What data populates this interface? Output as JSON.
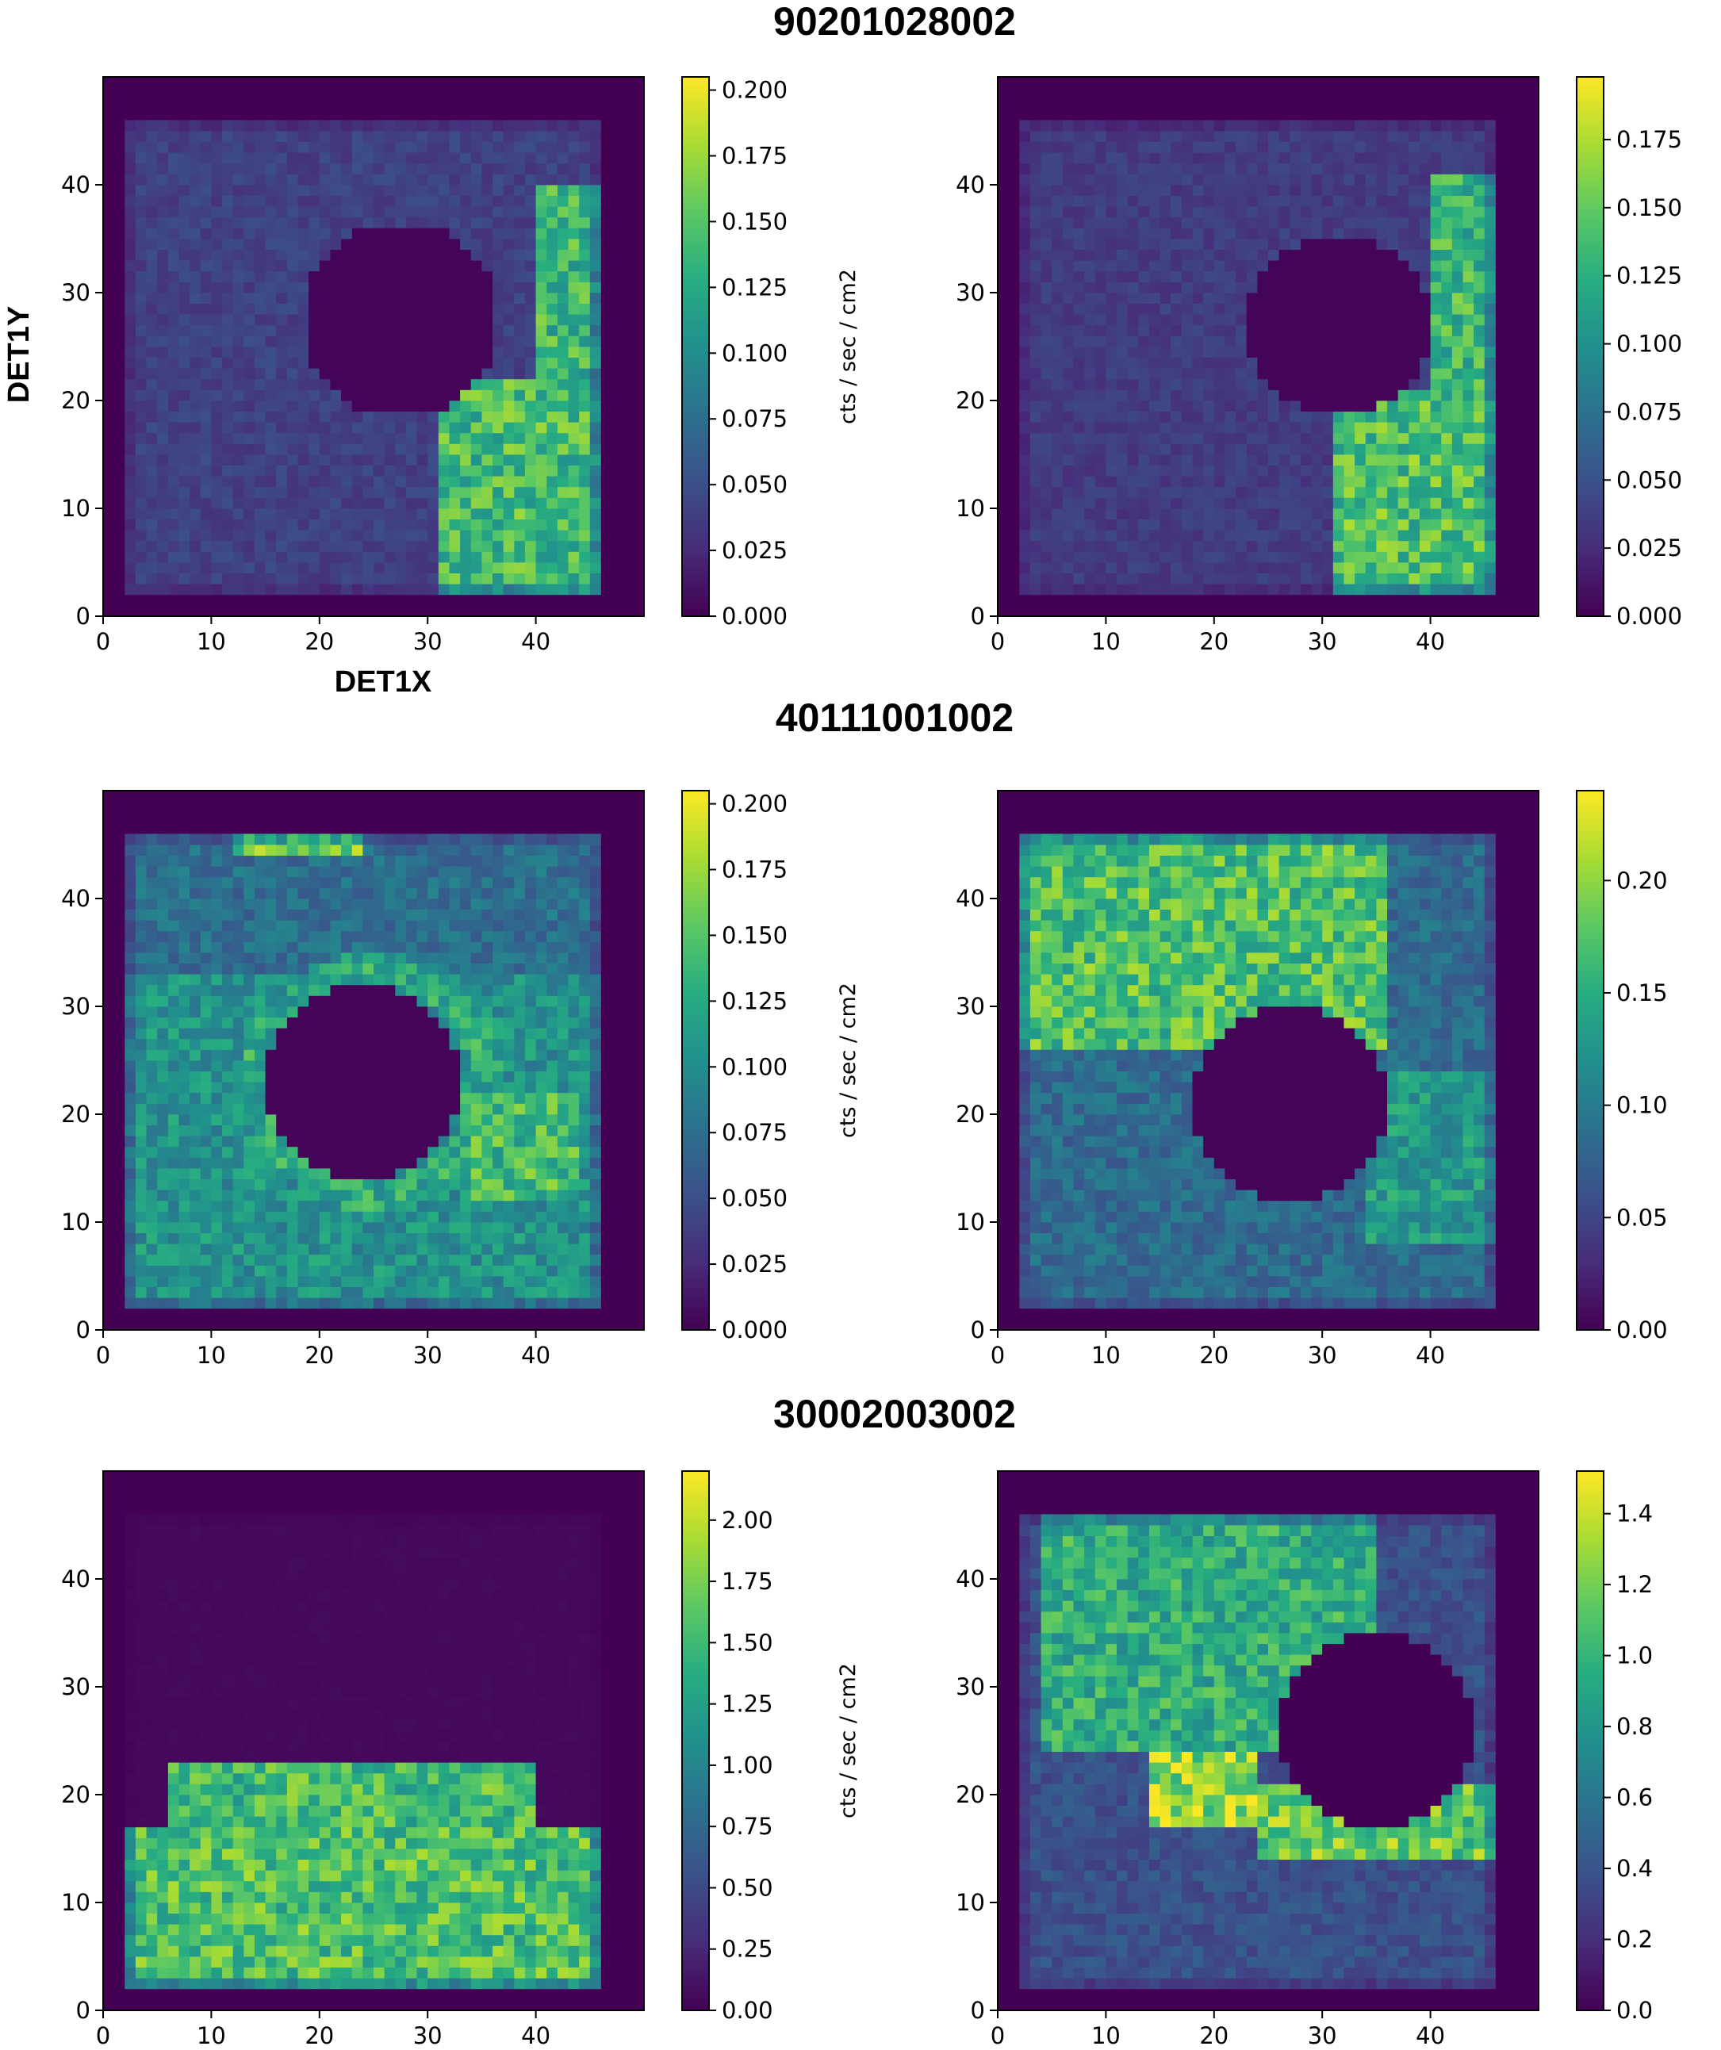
{
  "figure": {
    "group_titles": [
      "90201028002",
      "40111001002",
      "30002003002"
    ],
    "xlabel": "DET1X",
    "ylabel": "DET1Y",
    "colormap": [
      "#440154",
      "#472c7a",
      "#3b518b",
      "#2c718e",
      "#21908d",
      "#27ad81",
      "#5cc863",
      "#aadc32",
      "#fde725"
    ],
    "background_color": "#440154"
  },
  "chart_data": [
    {
      "type": "heatmap",
      "group": "90201028002",
      "panel": "left",
      "x_ticks": [
        0,
        10,
        20,
        30,
        40
      ],
      "y_ticks": [
        0,
        10,
        20,
        30,
        40
      ],
      "xlim": [
        0,
        50
      ],
      "ylim": [
        0,
        50
      ],
      "grid_cells": 50,
      "detector_range": [
        2,
        46
      ],
      "colorbar": {
        "label": "cts / sec / cm2",
        "min": 0,
        "max": 0.205,
        "ticks": [
          "0.000",
          "0.025",
          "0.050",
          "0.075",
          "0.100",
          "0.125",
          "0.150",
          "0.175",
          "0.200"
        ]
      },
      "background_level": 0.04,
      "regions": [
        {
          "shape": "rect",
          "x": [
            31,
            46
          ],
          "y": [
            2,
            22
          ],
          "level": 0.14
        },
        {
          "shape": "rect",
          "x": [
            40,
            46
          ],
          "y": [
            22,
            40
          ],
          "level": 0.135
        }
      ],
      "holes": [
        {
          "cx": 27.5,
          "cy": 27.5,
          "r": 9
        }
      ],
      "streaks": []
    },
    {
      "type": "heatmap",
      "group": "90201028002",
      "panel": "right",
      "x_ticks": [
        0,
        10,
        20,
        30,
        40
      ],
      "y_ticks": [
        0,
        10,
        20,
        30,
        40
      ],
      "xlim": [
        0,
        50
      ],
      "ylim": [
        0,
        50
      ],
      "grid_cells": 50,
      "detector_range": [
        2,
        46
      ],
      "colorbar": {
        "label": "cts / sec / cm2",
        "min": 0,
        "max": 0.198,
        "ticks": [
          "0.000",
          "0.025",
          "0.050",
          "0.075",
          "0.100",
          "0.125",
          "0.150",
          "0.175"
        ]
      },
      "background_level": 0.035,
      "regions": [
        {
          "shape": "rect",
          "x": [
            31,
            46
          ],
          "y": [
            2,
            21
          ],
          "level": 0.14
        },
        {
          "shape": "rect",
          "x": [
            40,
            46
          ],
          "y": [
            21,
            41
          ],
          "level": 0.13
        }
      ],
      "holes": [
        {
          "cx": 31.5,
          "cy": 27,
          "r": 8.5
        }
      ],
      "streaks": []
    },
    {
      "type": "heatmap",
      "group": "40111001002",
      "panel": "left",
      "x_ticks": [
        0,
        10,
        20,
        30,
        40
      ],
      "y_ticks": [
        0,
        10,
        20,
        30,
        40
      ],
      "xlim": [
        0,
        50
      ],
      "ylim": [
        0,
        50
      ],
      "grid_cells": 50,
      "detector_range": [
        2,
        46
      ],
      "colorbar": {
        "label": "cts / sec / cm2",
        "min": 0,
        "max": 0.205,
        "ticks": [
          "0.000",
          "0.025",
          "0.050",
          "0.075",
          "0.100",
          "0.125",
          "0.150",
          "0.175",
          "0.200"
        ]
      },
      "background_level": 0.075,
      "regions": [
        {
          "shape": "rect",
          "x": [
            2,
            46
          ],
          "y": [
            2,
            33
          ],
          "level": 0.105
        },
        {
          "shape": "ring",
          "cx": 25,
          "cy": 23,
          "r": [
            9,
            12
          ],
          "level": 0.125
        },
        {
          "shape": "rect",
          "x": [
            33,
            44
          ],
          "y": [
            12,
            22
          ],
          "level": 0.14
        }
      ],
      "holes": [
        {
          "cx": 24,
          "cy": 23,
          "r": 9
        }
      ],
      "streaks": [
        {
          "x": [
            12,
            24
          ],
          "y": [
            44,
            46
          ],
          "level": 0.17
        }
      ]
    },
    {
      "type": "heatmap",
      "group": "40111001002",
      "panel": "right",
      "x_ticks": [
        0,
        10,
        20,
        30,
        40
      ],
      "y_ticks": [
        0,
        10,
        20,
        30,
        40
      ],
      "xlim": [
        0,
        50
      ],
      "ylim": [
        0,
        50
      ],
      "grid_cells": 50,
      "detector_range": [
        2,
        46
      ],
      "colorbar": {
        "label": "cts / sec / cm2",
        "min": 0,
        "max": 0.24,
        "ticks": [
          "0.00",
          "0.05",
          "0.10",
          "0.15",
          "0.20"
        ]
      },
      "background_level": 0.085,
      "regions": [
        {
          "shape": "rect",
          "x": [
            2,
            36
          ],
          "y": [
            26,
            46
          ],
          "level": 0.17
        },
        {
          "shape": "rect",
          "x": [
            34,
            46
          ],
          "y": [
            8,
            24
          ],
          "level": 0.13
        }
      ],
      "holes": [
        {
          "cx": 27,
          "cy": 21,
          "r": 9
        }
      ],
      "streaks": []
    },
    {
      "type": "heatmap",
      "group": "30002003002",
      "panel": "left",
      "x_ticks": [
        0,
        10,
        20,
        30,
        40
      ],
      "y_ticks": [
        0,
        10,
        20,
        30,
        40
      ],
      "xlim": [
        0,
        50
      ],
      "ylim": [
        0,
        50
      ],
      "grid_cells": 50,
      "detector_range": [
        2,
        46
      ],
      "colorbar": {
        "label": "cts / sec / cm2",
        "min": 0,
        "max": 2.2,
        "ticks": [
          "0.00",
          "0.25",
          "0.50",
          "0.75",
          "1.00",
          "1.25",
          "1.50",
          "1.75",
          "2.00"
        ]
      },
      "background_level": 0.05,
      "regions": [
        {
          "shape": "rect",
          "x": [
            2,
            46
          ],
          "y": [
            2,
            17
          ],
          "level": 1.55
        },
        {
          "shape": "rect",
          "x": [
            6,
            40
          ],
          "y": [
            17,
            23
          ],
          "level": 1.5
        }
      ],
      "holes": [],
      "streaks": []
    },
    {
      "type": "heatmap",
      "group": "30002003002",
      "panel": "right",
      "x_ticks": [
        0,
        10,
        20,
        30,
        40
      ],
      "y_ticks": [
        0,
        10,
        20,
        30,
        40
      ],
      "xlim": [
        0,
        50
      ],
      "ylim": [
        0,
        50
      ],
      "grid_cells": 50,
      "detector_range": [
        2,
        46
      ],
      "colorbar": {
        "label": "cts / sec / cm2",
        "min": 0,
        "max": 1.52,
        "ticks": [
          "0.0",
          "0.2",
          "0.4",
          "0.6",
          "0.8",
          "1.0",
          "1.2",
          "1.4"
        ]
      },
      "background_level": 0.38,
      "regions": [
        {
          "shape": "rect",
          "x": [
            4,
            35
          ],
          "y": [
            24,
            46
          ],
          "level": 0.95
        },
        {
          "shape": "rect",
          "x": [
            14,
            24
          ],
          "y": [
            17,
            24
          ],
          "level": 1.3
        },
        {
          "shape": "rect",
          "x": [
            24,
            46
          ],
          "y": [
            14,
            21
          ],
          "level": 1.15
        }
      ],
      "holes": [
        {
          "cx": 35,
          "cy": 26,
          "r": 9
        }
      ],
      "streaks": []
    }
  ]
}
